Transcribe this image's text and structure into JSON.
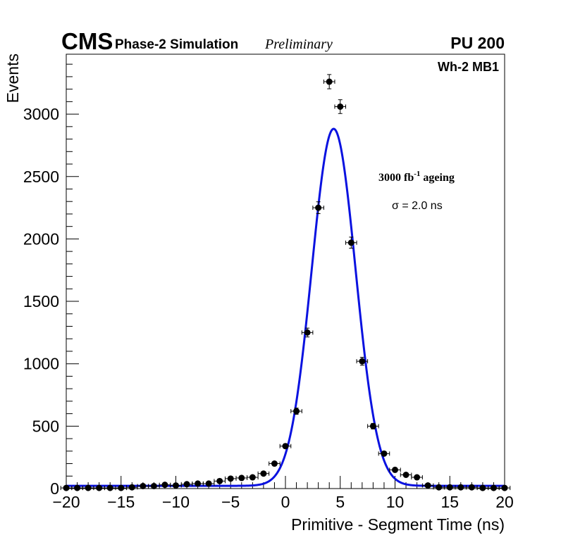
{
  "header": {
    "cms": "CMS",
    "phase": "Phase-2 Simulation",
    "preliminary": "Preliminary",
    "pileup": "PU 200"
  },
  "annotations": {
    "chamber": "Wh-2 MB1",
    "lumi_value": "3000 fb",
    "lumi_exp": "-1",
    "lumi_suffix": " ageing",
    "sigma": "σ = 2.0 ns"
  },
  "colors": {
    "fit": "#0a12e0",
    "points": "#000000",
    "axes": "#000000"
  },
  "chart_data": {
    "type": "scatter",
    "xlabel": "Primitive - Segment Time (ns)",
    "ylabel": "Events",
    "xlim": [
      -20,
      20
    ],
    "ylim": [
      0,
      3480
    ],
    "x_ticks": [
      -20,
      -15,
      -10,
      -5,
      0,
      5,
      10,
      15,
      20
    ],
    "x_tick_labels": [
      "−20",
      "−15",
      "−10",
      "−5",
      "0",
      "5",
      "10",
      "15",
      "20"
    ],
    "y_ticks": [
      0,
      500,
      1000,
      1500,
      2000,
      2500,
      3000
    ],
    "y_tick_labels": [
      "0",
      "500",
      "1000",
      "1500",
      "2000",
      "2500",
      "3000"
    ],
    "series": [
      {
        "type": "points_with_errors",
        "x": [
          -20,
          -19,
          -18,
          -17,
          -16,
          -15,
          -14,
          -13,
          -12,
          -11,
          -10,
          -9,
          -8,
          -7,
          -6,
          -5,
          -4,
          -3,
          -2,
          -1,
          0,
          1,
          2,
          3,
          4,
          5,
          6,
          7,
          8,
          9,
          10,
          11,
          12,
          13,
          14,
          15,
          16,
          17,
          18,
          19,
          20
        ],
        "y": [
          5,
          5,
          5,
          5,
          5,
          5,
          10,
          20,
          20,
          30,
          25,
          35,
          40,
          40,
          60,
          80,
          85,
          90,
          120,
          200,
          340,
          620,
          1250,
          2250,
          3260,
          3060,
          1970,
          1020,
          500,
          280,
          150,
          110,
          90,
          25,
          10,
          10,
          10,
          10,
          5,
          5,
          5
        ]
      },
      {
        "type": "fit_line",
        "mean": 4.4,
        "sigma": 2.0,
        "amplitude": 2860,
        "baseline": 22
      }
    ],
    "grid": false,
    "legend": "none"
  }
}
